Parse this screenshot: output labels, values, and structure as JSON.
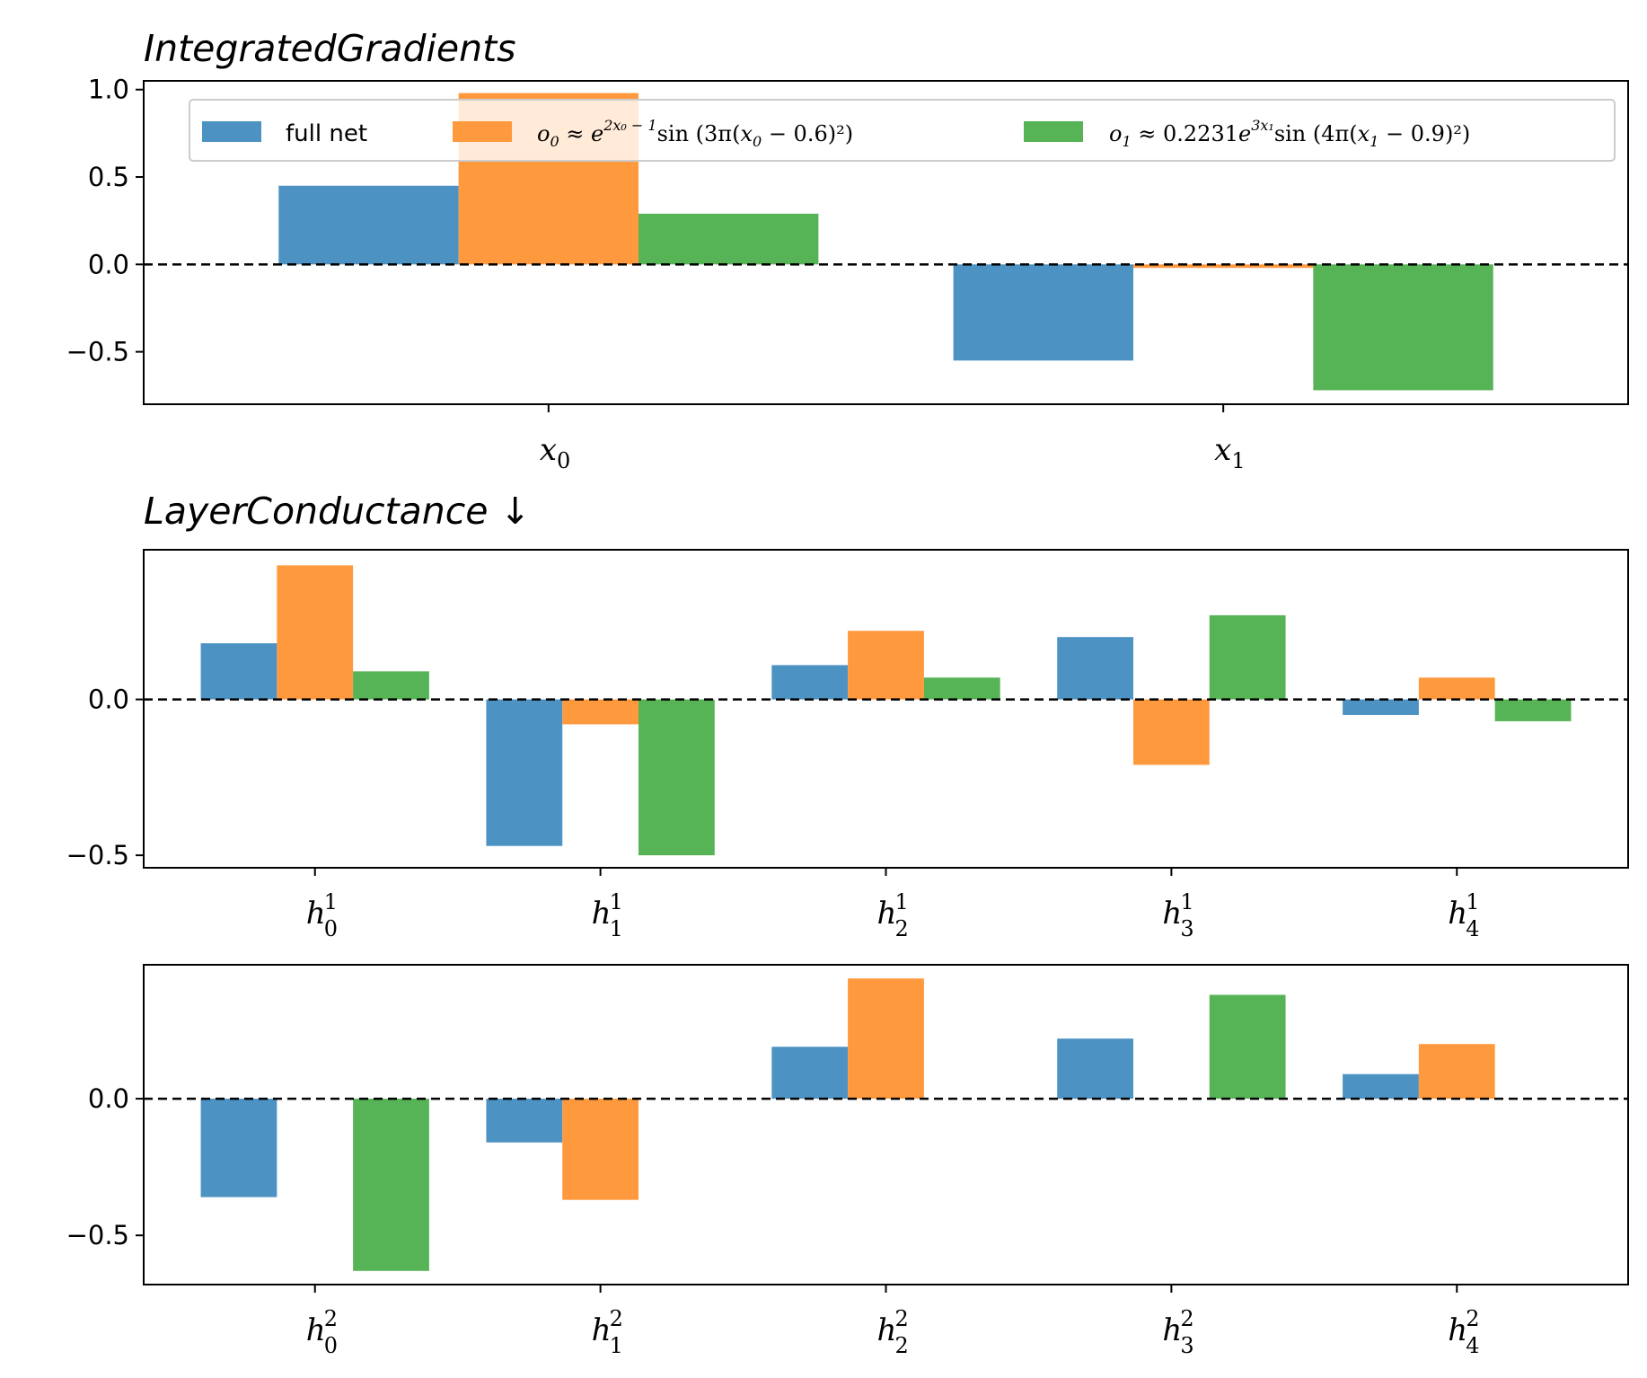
{
  "chart_data": [
    {
      "type": "bar",
      "title": "IntegratedGradients",
      "categories": [
        "x0",
        "x1"
      ],
      "category_labels": [
        {
          "base": "x",
          "sub": "0",
          "sup": ""
        },
        {
          "base": "x",
          "sub": "1",
          "sup": ""
        }
      ],
      "series": [
        {
          "name": "full net",
          "values": [
            0.45,
            -0.55
          ]
        },
        {
          "name": "o0 ≈ e^(2x0−1) sin(3π(x0−0.6)^2)",
          "values": [
            0.98,
            -0.02
          ]
        },
        {
          "name": "o1 ≈ 0.2231 e^(3x1) sin(4π(x1−0.9)^2)",
          "values": [
            0.29,
            -0.72
          ]
        }
      ],
      "ylim": [
        -0.8,
        1.05
      ],
      "yticks": [
        -0.5,
        0.0,
        0.5,
        1.0
      ],
      "ytick_labels": [
        "−0.5",
        "0.0",
        "0.5",
        "1.0"
      ],
      "zero_line": "dashed",
      "legend_placement": "top",
      "legend_entries": [
        "full net",
        "o0 ≈ e^(2x0−1) sin(3π(x0−0.6)^2)",
        "o1 ≈ 0.2231 e^(3x1) sin(4π(x1−0.9)^2)"
      ]
    },
    {
      "type": "bar",
      "title": "LayerConductance ↓",
      "categories": [
        "h0^1",
        "h1^1",
        "h2^1",
        "h3^1",
        "h4^1"
      ],
      "category_labels": [
        {
          "base": "h",
          "sub": "0",
          "sup": "1"
        },
        {
          "base": "h",
          "sub": "1",
          "sup": "1"
        },
        {
          "base": "h",
          "sub": "2",
          "sup": "1"
        },
        {
          "base": "h",
          "sub": "3",
          "sup": "1"
        },
        {
          "base": "h",
          "sub": "4",
          "sup": "1"
        }
      ],
      "series": [
        {
          "name": "full net",
          "values": [
            0.18,
            -0.47,
            0.11,
            0.2,
            -0.05
          ]
        },
        {
          "name": "o0",
          "values": [
            0.43,
            -0.08,
            0.22,
            -0.21,
            0.07
          ]
        },
        {
          "name": "o1",
          "values": [
            0.09,
            -0.5,
            0.07,
            0.27,
            -0.07
          ]
        }
      ],
      "ylim": [
        -0.54,
        0.48
      ],
      "yticks": [
        -0.5,
        0.0
      ],
      "ytick_labels": [
        "−0.5",
        "0.0"
      ],
      "zero_line": "dashed"
    },
    {
      "type": "bar",
      "title": "",
      "categories": [
        "h0^2",
        "h1^2",
        "h2^2",
        "h3^2",
        "h4^2"
      ],
      "category_labels": [
        {
          "base": "h",
          "sub": "0",
          "sup": "2"
        },
        {
          "base": "h",
          "sub": "1",
          "sup": "2"
        },
        {
          "base": "h",
          "sub": "2",
          "sup": "2"
        },
        {
          "base": "h",
          "sub": "3",
          "sup": "2"
        },
        {
          "base": "h",
          "sub": "4",
          "sup": "2"
        }
      ],
      "series": [
        {
          "name": "full net",
          "values": [
            -0.36,
            -0.16,
            0.19,
            0.22,
            0.09
          ]
        },
        {
          "name": "o0",
          "values": [
            0.0,
            -0.37,
            0.44,
            0.0,
            0.2
          ]
        },
        {
          "name": "o1",
          "values": [
            -0.63,
            0.0,
            0.0,
            0.38,
            0.0
          ]
        }
      ],
      "ylim": [
        -0.68,
        0.49
      ],
      "yticks": [
        -0.5,
        0.0
      ],
      "ytick_labels": [
        "−0.5",
        "0.0"
      ],
      "zero_line": "dashed"
    }
  ],
  "colors": {
    "full_net": "#4c92c3",
    "o0": "#ff993e",
    "o1": "#56b356"
  },
  "legend": {
    "full_net_label": "full net",
    "o0_label": "o0 ≈ e^(2x0−1) sin(3π(x0−0.6)^2)",
    "o1_label": "o1 ≈ 0.2231 e^(3x1) sin(4π(x1−0.9)^2)"
  }
}
